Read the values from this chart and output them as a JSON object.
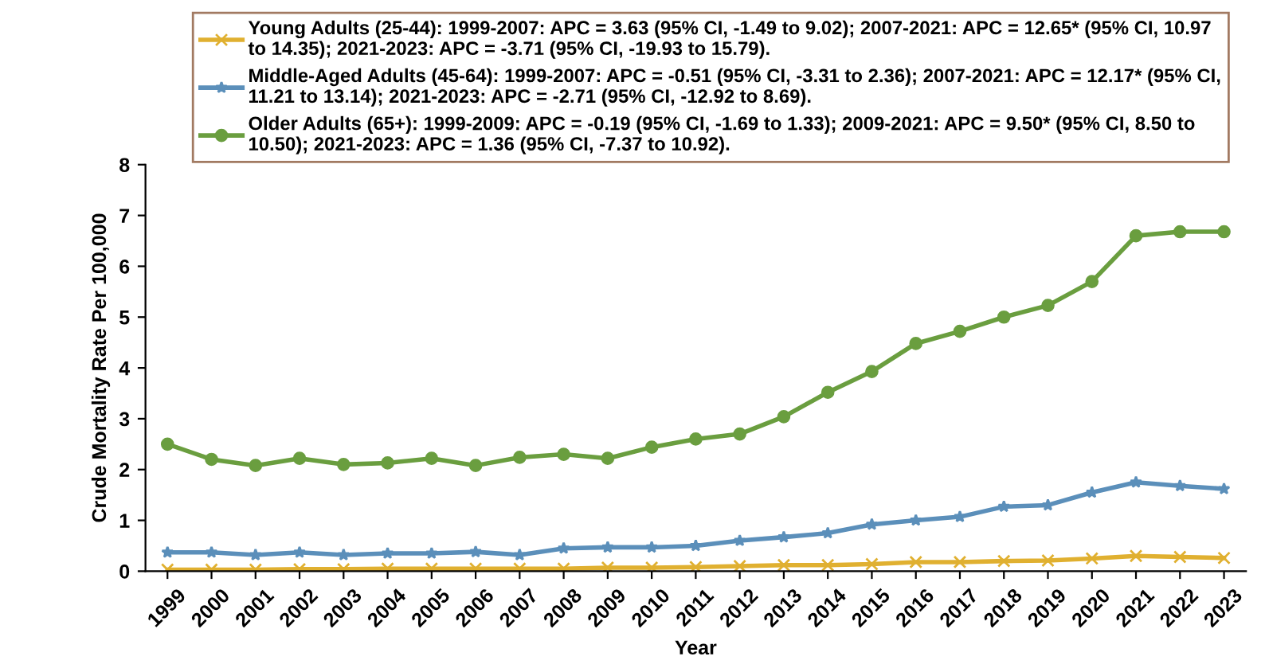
{
  "chart_data": {
    "type": "line",
    "xlabel": "Year",
    "ylabel": "Crude Mortality Rate Per 100,000",
    "categories": [
      "1999",
      "2000",
      "2001",
      "2002",
      "2003",
      "2004",
      "2005",
      "2006",
      "2007",
      "2008",
      "2009",
      "2010",
      "2011",
      "2012",
      "2013",
      "2014",
      "2015",
      "2016",
      "2017",
      "2018",
      "2019",
      "2020",
      "2021",
      "2022",
      "2023"
    ],
    "series": [
      {
        "name": "Young Adults (25-44): 1999-2007: APC = 3.63 (95% CI, -1.49 to 9.02); 2007-2021: APC = 12.65* (95% CI, 10.97\nto 14.35); 2021-2023: APC = -3.71 (95% CI, -19.93 to 15.79).",
        "color": "#e0b030",
        "marker": "cross",
        "values": [
          0.03,
          0.03,
          0.03,
          0.04,
          0.04,
          0.05,
          0.05,
          0.05,
          0.05,
          0.05,
          0.07,
          0.07,
          0.08,
          0.1,
          0.12,
          0.12,
          0.14,
          0.18,
          0.18,
          0.2,
          0.21,
          0.25,
          0.3,
          0.28,
          0.26
        ]
      },
      {
        "name": "Middle-Aged Adults (45-64): 1999-2007: APC = -0.51 (95% CI, -3.31 to 2.36); 2007-2021: APC = 12.17* (95% CI,\n11.21 to 13.14); 2021-2023: APC = -2.71 (95% CI, -12.92 to 8.69).",
        "color": "#5b8fba",
        "marker": "star",
        "values": [
          0.37,
          0.37,
          0.32,
          0.37,
          0.32,
          0.35,
          0.35,
          0.38,
          0.32,
          0.45,
          0.47,
          0.47,
          0.5,
          0.6,
          0.67,
          0.75,
          0.92,
          1.0,
          1.07,
          1.27,
          1.3,
          1.55,
          1.75,
          1.68,
          1.62
        ]
      },
      {
        "name": "Older Adults (65+): 1999-2009: APC = -0.19 (95% CI, -1.69 to 1.33); 2009-2021: APC = 9.50* (95% CI, 8.50 to\n10.50); 2021-2023: APC = 1.36 (95% CI, -7.37 to 10.92).",
        "color": "#6a9e3f",
        "marker": "circle",
        "values": [
          2.5,
          2.2,
          2.08,
          2.22,
          2.1,
          2.13,
          2.22,
          2.08,
          2.24,
          2.3,
          2.22,
          2.44,
          2.6,
          2.7,
          3.04,
          3.52,
          3.93,
          4.48,
          4.72,
          5.0,
          5.23,
          5.7,
          6.6,
          6.68,
          6.68
        ]
      }
    ],
    "ylim": [
      0,
      8
    ],
    "yticks": [
      0,
      1,
      2,
      3,
      4,
      5,
      6,
      7,
      8
    ],
    "grid": false,
    "legend": "top",
    "line_style": "solid"
  }
}
